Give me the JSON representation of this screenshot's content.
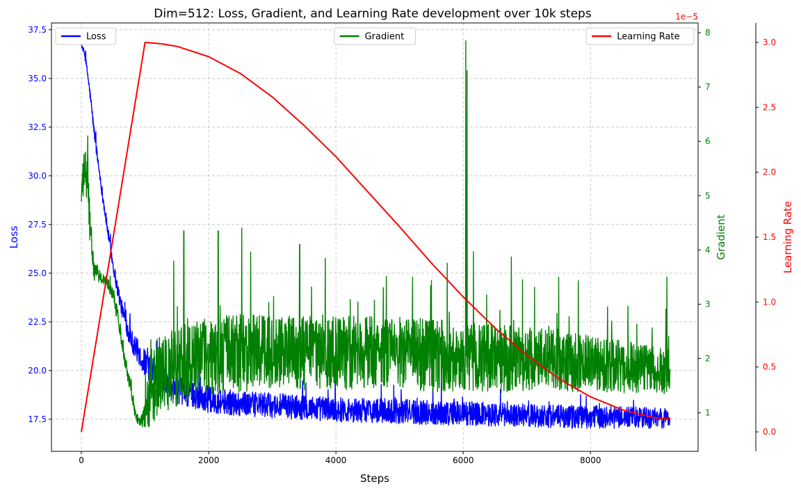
{
  "chart_data": {
    "type": "line",
    "title": "Dim=512: Loss, Gradient, and Learning Rate development over 10k steps",
    "xlabel": "Steps",
    "xlim": [
      -470,
      9690
    ],
    "xticks": [
      0,
      2000,
      4000,
      6000,
      8000
    ],
    "grid": true,
    "axes": [
      {
        "id": "loss",
        "label": "Loss",
        "side": "left",
        "color": "#0000ff",
        "ylim": [
          15.85,
          37.85
        ],
        "ticks": [
          "17.5",
          "20.0",
          "22.5",
          "25.0",
          "27.5",
          "30.0",
          "32.5",
          "35.0",
          "37.5"
        ],
        "tick_values": [
          17.5,
          20.0,
          22.5,
          25.0,
          27.5,
          30.0,
          32.5,
          35.0,
          37.5
        ]
      },
      {
        "id": "gradient",
        "label": "Gradient",
        "side": "right",
        "color": "#008000",
        "ylim": [
          0.29,
          8.18
        ],
        "ticks": [
          "1",
          "2",
          "3",
          "4",
          "5",
          "6",
          "7",
          "8"
        ],
        "tick_values": [
          1,
          2,
          3,
          4,
          5,
          6,
          7,
          8
        ]
      },
      {
        "id": "lr",
        "label": "Learning Rate",
        "side": "right-outer",
        "color": "#ff0000",
        "offset_text": "1e−5",
        "ylim": [
          -0.15,
          3.15
        ],
        "ticks": [
          "0.0",
          "0.5",
          "1.0",
          "1.5",
          "2.0",
          "2.5",
          "3.0"
        ],
        "tick_values": [
          0.0,
          0.5,
          1.0,
          1.5,
          2.0,
          2.5,
          3.0
        ]
      }
    ],
    "series": [
      {
        "name": "Loss",
        "axis": "loss",
        "color": "#0000ff",
        "legend_position": "upper-left",
        "x": [
          0,
          50,
          100,
          150,
          200,
          250,
          300,
          350,
          400,
          450,
          500,
          550,
          600,
          650,
          700,
          750,
          800,
          850,
          900,
          950,
          1000,
          1100,
          1200,
          1300,
          1400,
          1500,
          1600,
          1700,
          1800,
          1900,
          2000,
          2500,
          3000,
          3500,
          4000,
          4500,
          5000,
          5500,
          6000,
          6500,
          7000,
          7500,
          8000,
          8500,
          9000,
          9250
        ],
        "center": [
          36.7,
          36.3,
          35.2,
          33.8,
          32.3,
          31.0,
          29.8,
          28.6,
          27.5,
          26.4,
          25.4,
          24.5,
          23.7,
          23.0,
          22.4,
          21.9,
          21.5,
          21.2,
          20.9,
          20.6,
          20.4,
          20.0,
          19.7,
          19.4,
          19.2,
          19.0,
          18.9,
          18.8,
          18.7,
          18.6,
          18.5,
          18.3,
          18.2,
          18.1,
          18.0,
          17.95,
          17.9,
          17.85,
          17.8,
          17.75,
          17.7,
          17.65,
          17.6,
          17.6,
          17.55,
          17.55
        ],
        "noise": [
          0.1,
          0.2,
          0.3,
          0.35,
          0.35,
          0.35,
          0.35,
          0.4,
          0.4,
          0.4,
          0.45,
          0.5,
          0.5,
          0.55,
          0.6,
          0.65,
          0.7,
          0.75,
          0.8,
          0.8,
          0.85,
          0.9,
          0.9,
          0.9,
          0.9,
          0.9,
          0.85,
          0.85,
          0.85,
          0.85,
          0.85,
          0.8,
          0.8,
          0.8,
          0.8,
          0.8,
          0.8,
          0.8,
          0.8,
          0.75,
          0.75,
          0.75,
          0.75,
          0.7,
          0.7,
          0.7
        ]
      },
      {
        "name": "Gradient",
        "axis": "gradient",
        "color": "#008000",
        "legend_position": "upper-center",
        "x": [
          0,
          50,
          100,
          150,
          200,
          300,
          400,
          500,
          600,
          700,
          800,
          850,
          900,
          950,
          1000,
          1050,
          1100,
          1200,
          1400,
          1600,
          1800,
          2000,
          2500,
          3000,
          3500,
          4000,
          4500,
          5000,
          5500,
          6000,
          6500,
          7000,
          7500,
          8000,
          8500,
          9000,
          9250
        ],
        "center": [
          5.0,
          5.5,
          5.2,
          4.2,
          3.6,
          3.5,
          3.4,
          3.2,
          2.6,
          1.9,
          1.3,
          1.0,
          0.85,
          0.85,
          0.95,
          1.2,
          1.5,
          1.65,
          1.8,
          1.9,
          2.0,
          2.05,
          2.1,
          2.1,
          2.1,
          2.1,
          2.1,
          2.1,
          2.05,
          2.05,
          2.0,
          2.0,
          1.95,
          1.9,
          1.85,
          1.8,
          1.75
        ],
        "noise": [
          0.4,
          0.5,
          0.6,
          0.4,
          0.2,
          0.15,
          0.15,
          0.15,
          0.2,
          0.2,
          0.2,
          0.15,
          0.1,
          0.15,
          0.3,
          0.6,
          0.9,
          0.9,
          0.9,
          0.9,
          0.9,
          0.9,
          0.9,
          0.85,
          0.85,
          0.85,
          0.85,
          0.85,
          0.85,
          0.8,
          0.8,
          0.75,
          0.7,
          0.65,
          0.6,
          0.55,
          0.55
        ],
        "spikes": [
          {
            "x": 100,
            "y": 6.1
          },
          {
            "x": 1610,
            "y": 4.35
          },
          {
            "x": 2150,
            "y": 4.35
          },
          {
            "x": 2520,
            "y": 4.4
          },
          {
            "x": 3430,
            "y": 4.1
          },
          {
            "x": 6040,
            "y": 7.85
          },
          {
            "x": 6060,
            "y": 7.3
          },
          {
            "x": 7500,
            "y": 3.5
          },
          {
            "x": 9200,
            "y": 3.5
          }
        ]
      },
      {
        "name": "Learning Rate",
        "axis": "lr",
        "color": "#ff0000",
        "legend_position": "upper-right",
        "x": [
          0,
          1000,
          1250,
          1500,
          2000,
          2500,
          3000,
          3500,
          4000,
          4500,
          5000,
          5500,
          6000,
          6500,
          7000,
          7500,
          8000,
          8500,
          9000,
          9250
        ],
        "values": [
          0.0,
          3.0,
          2.99,
          2.97,
          2.89,
          2.76,
          2.58,
          2.36,
          2.12,
          1.85,
          1.58,
          1.3,
          1.04,
          0.8,
          0.59,
          0.41,
          0.27,
          0.17,
          0.11,
          0.1
        ]
      }
    ]
  }
}
